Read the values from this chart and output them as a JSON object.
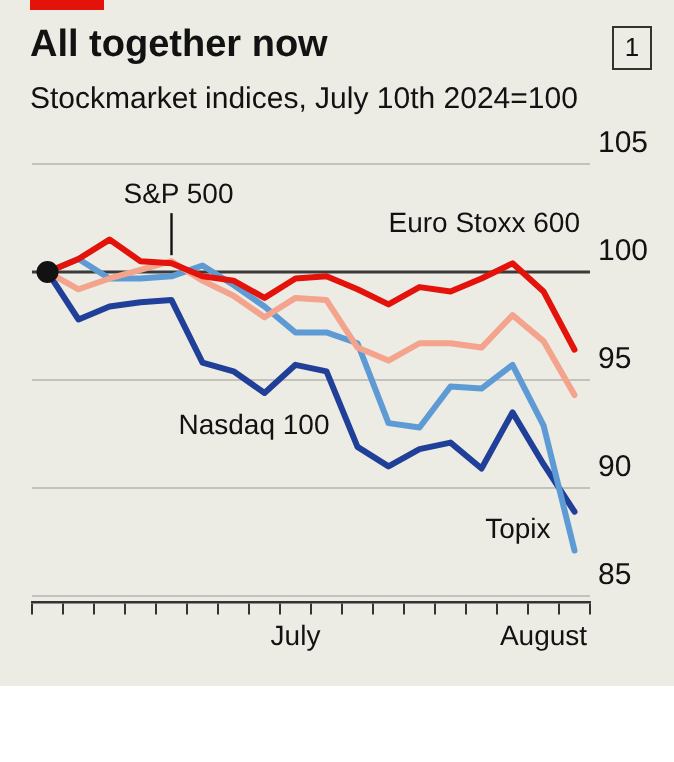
{
  "chart_data": {
    "type": "line",
    "title": "All together now",
    "subtitle": "Stockmarket indices, July 10th 2024=100",
    "annotations": [
      "1"
    ],
    "categories": [
      null,
      null,
      null,
      null,
      null,
      null,
      null,
      null,
      "July",
      null,
      null,
      null,
      null,
      null,
      null,
      null,
      "August",
      null
    ],
    "series": [
      {
        "name": "Euro Stoxx 600",
        "color": "#e3120b",
        "values": [
          100,
          100.6,
          101.5,
          100.5,
          100.4,
          99.8,
          99.6,
          98.8,
          99.7,
          99.8,
          99.2,
          98.5,
          99.3,
          99.1,
          99.7,
          100.4,
          99.1,
          96.4
        ]
      },
      {
        "name": "S&P 500",
        "color": "#f4a38c",
        "values": [
          100,
          99.2,
          99.7,
          100.1,
          100.5,
          99.6,
          98.9,
          97.9,
          98.8,
          98.7,
          96.5,
          95.9,
          96.7,
          96.7,
          96.5,
          98.0,
          96.8,
          94.3
        ]
      },
      {
        "name": "Topix",
        "color": "#5e9bd4",
        "values": [
          100,
          100.6,
          99.7,
          99.7,
          99.8,
          100.3,
          99.4,
          98.4,
          97.2,
          97.2,
          96.7,
          93.0,
          92.8,
          94.7,
          94.6,
          95.7,
          92.9,
          87.1
        ]
      },
      {
        "name": "Nasdaq 100",
        "color": "#1f3f99",
        "values": [
          100,
          97.8,
          98.4,
          98.6,
          98.7,
          95.8,
          95.4,
          94.4,
          95.7,
          95.4,
          91.9,
          91.0,
          91.8,
          92.1,
          90.9,
          93.5,
          91.1,
          88.9
        ]
      },
      {
        "type": "scatter",
        "color": "#121212",
        "marker": "circle",
        "values": [
          100,
          null,
          null,
          null,
          null,
          null,
          null,
          null,
          null,
          null,
          null,
          null,
          null,
          null,
          null,
          null,
          null,
          null
        ]
      }
    ],
    "ref_lines": [
      {
        "axis": "y",
        "value": 100,
        "color": "#3a3a3a"
      }
    ],
    "ylim": [
      84.7,
      105
    ],
    "yticks": [
      85,
      90,
      95,
      100,
      105
    ],
    "grid": "y",
    "legend": false,
    "marker": "none",
    "line_style": "solid"
  }
}
